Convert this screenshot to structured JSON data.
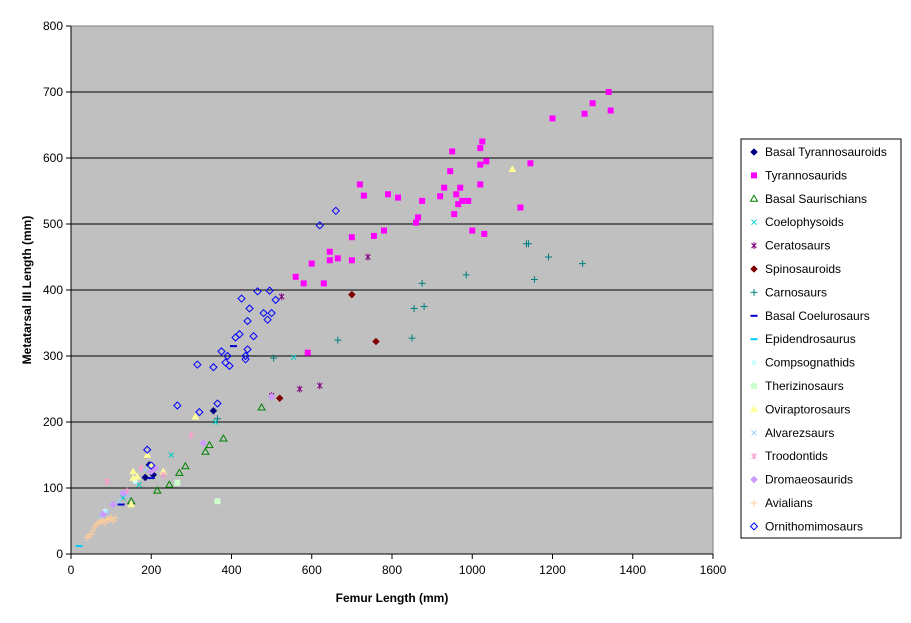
{
  "chart_data": {
    "type": "scatter",
    "title": "",
    "xlabel": "Femur Length (mm)",
    "ylabel": "Metatarsal III Length (mm)",
    "xlim": [
      0,
      1600
    ],
    "ylim": [
      0,
      800
    ],
    "xticks": [
      0,
      200,
      400,
      600,
      800,
      1000,
      1200,
      1400,
      1600
    ],
    "yticks": [
      0,
      100,
      200,
      300,
      400,
      500,
      600,
      700,
      800
    ],
    "grid": "horizontal major",
    "plot_background": "#c0c0c0",
    "legend_position": "right",
    "series": [
      {
        "name": "Basal Tyrannosauroids",
        "marker": "diamond",
        "color": "#000080",
        "points": [
          [
            355,
            217
          ],
          [
            185,
            116
          ],
          [
            195,
            135
          ],
          [
            205,
            120
          ]
        ]
      },
      {
        "name": "Tyrannosaurids",
        "marker": "square",
        "color": "#ff00ff",
        "points": [
          [
            590,
            305
          ],
          [
            560,
            420
          ],
          [
            600,
            440
          ],
          [
            580,
            410
          ],
          [
            630,
            410
          ],
          [
            645,
            445
          ],
          [
            645,
            458
          ],
          [
            665,
            448
          ],
          [
            700,
            445
          ],
          [
            700,
            480
          ],
          [
            720,
            560
          ],
          [
            730,
            543
          ],
          [
            755,
            482
          ],
          [
            780,
            490
          ],
          [
            790,
            545
          ],
          [
            815,
            540
          ],
          [
            860,
            502
          ],
          [
            865,
            510
          ],
          [
            875,
            535
          ],
          [
            920,
            542
          ],
          [
            930,
            555
          ],
          [
            945,
            580
          ],
          [
            950,
            610
          ],
          [
            955,
            515
          ],
          [
            960,
            545
          ],
          [
            965,
            530
          ],
          [
            970,
            555
          ],
          [
            975,
            535
          ],
          [
            990,
            535
          ],
          [
            1000,
            490
          ],
          [
            1020,
            560
          ],
          [
            1020,
            590
          ],
          [
            1020,
            615
          ],
          [
            1025,
            625
          ],
          [
            1030,
            485
          ],
          [
            1035,
            595
          ],
          [
            1120,
            525
          ],
          [
            1145,
            592
          ],
          [
            1200,
            660
          ],
          [
            1280,
            667
          ],
          [
            1300,
            683
          ],
          [
            1340,
            700
          ],
          [
            1345,
            672
          ]
        ]
      },
      {
        "name": "Basal Saurischians",
        "marker": "triangle-open",
        "color": "#008000",
        "points": [
          [
            150,
            80
          ],
          [
            215,
            96
          ],
          [
            270,
            123
          ],
          [
            285,
            133
          ],
          [
            335,
            155
          ],
          [
            345,
            165
          ],
          [
            380,
            175
          ],
          [
            475,
            222
          ],
          [
            245,
            105
          ]
        ]
      },
      {
        "name": "Coelophysoids",
        "marker": "x",
        "color": "#00cccc",
        "points": [
          [
            130,
            85
          ],
          [
            170,
            105
          ],
          [
            250,
            150
          ],
          [
            360,
            200
          ],
          [
            555,
            298
          ]
        ]
      },
      {
        "name": "Ceratosaurs",
        "marker": "asterisk",
        "color": "#800080",
        "points": [
          [
            570,
            250
          ],
          [
            620,
            255
          ],
          [
            525,
            390
          ],
          [
            740,
            450
          ],
          [
            500,
            240
          ]
        ]
      },
      {
        "name": "Spinosauroids",
        "marker": "diamond",
        "color": "#800000",
        "points": [
          [
            520,
            236
          ],
          [
            700,
            393
          ],
          [
            760,
            322
          ]
        ]
      },
      {
        "name": "Carnosaurs",
        "marker": "plus",
        "color": "#008080",
        "points": [
          [
            505,
            297
          ],
          [
            365,
            205
          ],
          [
            665,
            324
          ],
          [
            850,
            327
          ],
          [
            855,
            372
          ],
          [
            880,
            375
          ],
          [
            875,
            410
          ],
          [
            985,
            423
          ],
          [
            1140,
            470
          ],
          [
            1155,
            416
          ],
          [
            1190,
            450
          ],
          [
            1275,
            440
          ],
          [
            1135,
            470
          ]
        ]
      },
      {
        "name": "Basal Coelurosaurs",
        "marker": "dash",
        "color": "#0000cc",
        "points": [
          [
            125,
            75
          ],
          [
            200,
            115
          ],
          [
            405,
            315
          ]
        ]
      },
      {
        "name": "Epidendrosaurus",
        "marker": "dash",
        "color": "#00ccff",
        "points": [
          [
            20,
            12
          ]
        ]
      },
      {
        "name": "Compsognathids",
        "marker": "circle",
        "color": "#ccffff",
        "points": [
          [
            85,
            65
          ],
          [
            160,
            110
          ]
        ]
      },
      {
        "name": "Therizinosaurs",
        "marker": "square",
        "color": "#ccffcc",
        "points": [
          [
            265,
            108
          ],
          [
            365,
            80
          ]
        ]
      },
      {
        "name": "Oviraptorosaurs",
        "marker": "triangle",
        "color": "#ffff99",
        "points": [
          [
            150,
            75
          ],
          [
            155,
            115
          ],
          [
            155,
            125
          ],
          [
            165,
            117
          ],
          [
            190,
            150
          ],
          [
            200,
            135
          ],
          [
            230,
            125
          ],
          [
            310,
            208
          ],
          [
            1100,
            583
          ]
        ]
      },
      {
        "name": "Alvarezsaurs",
        "marker": "x",
        "color": "#99ccff",
        "points": [
          [
            75,
            57
          ],
          [
            90,
            63
          ],
          [
            120,
            80
          ],
          [
            140,
            90
          ],
          [
            185,
            128
          ]
        ]
      },
      {
        "name": "Troodontids",
        "marker": "asterisk",
        "color": "#ff99cc",
        "points": [
          [
            90,
            110
          ],
          [
            140,
            95
          ],
          [
            175,
            130
          ],
          [
            230,
            120
          ],
          [
            300,
            180
          ]
        ]
      },
      {
        "name": "Dromaeosaurids",
        "marker": "diamond",
        "color": "#cc99ff",
        "points": [
          [
            80,
            60
          ],
          [
            105,
            75
          ],
          [
            130,
            92
          ],
          [
            200,
            125
          ],
          [
            210,
            130
          ],
          [
            330,
            168
          ],
          [
            500,
            238
          ]
        ]
      },
      {
        "name": "Avialians",
        "marker": "plus",
        "color": "#ffcc99",
        "points": [
          [
            40,
            25
          ],
          [
            45,
            27
          ],
          [
            50,
            30
          ],
          [
            55,
            35
          ],
          [
            60,
            42
          ],
          [
            65,
            45
          ],
          [
            70,
            48
          ],
          [
            75,
            50
          ],
          [
            80,
            50
          ],
          [
            85,
            47
          ],
          [
            90,
            52
          ],
          [
            95,
            53
          ],
          [
            100,
            55
          ],
          [
            105,
            50
          ],
          [
            110,
            55
          ]
        ]
      },
      {
        "name": "Ornithomimosaurs",
        "marker": "diamond-open",
        "color": "#0000ff",
        "points": [
          [
            190,
            158
          ],
          [
            200,
            134
          ],
          [
            265,
            225
          ],
          [
            315,
            287
          ],
          [
            320,
            215
          ],
          [
            355,
            283
          ],
          [
            365,
            228
          ],
          [
            375,
            307
          ],
          [
            385,
            290
          ],
          [
            390,
            300
          ],
          [
            395,
            285
          ],
          [
            410,
            328
          ],
          [
            420,
            333
          ],
          [
            425,
            387
          ],
          [
            435,
            295
          ],
          [
            435,
            300
          ],
          [
            440,
            353
          ],
          [
            440,
            310
          ],
          [
            445,
            372
          ],
          [
            455,
            330
          ],
          [
            465,
            398
          ],
          [
            480,
            365
          ],
          [
            490,
            355
          ],
          [
            495,
            399
          ],
          [
            500,
            365
          ],
          [
            510,
            385
          ],
          [
            620,
            498
          ],
          [
            660,
            520
          ]
        ]
      }
    ]
  }
}
